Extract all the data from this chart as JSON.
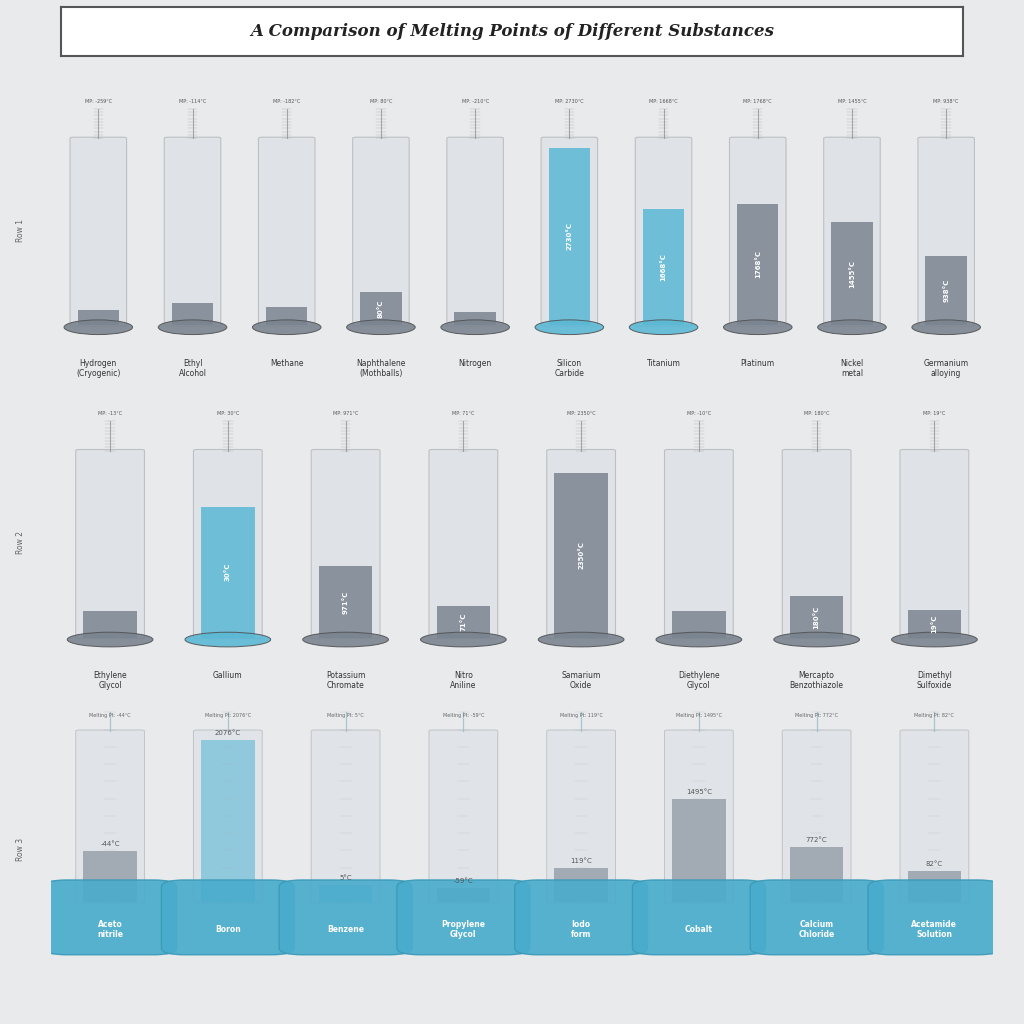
{
  "title": "A Comparison of Melting Points of Different Substances",
  "background_color": "#e8eaec",
  "title_bg": "#ffffff",
  "cylinder_outer_color": "#c8cdd4",
  "cylinder_edge_color": "#aaaaaa",
  "default_fill_color": "#7a8490",
  "highlight_fill_color": "#5bb8d4",
  "bulb_color": "#4aaccc",
  "bulb_text_color": "#ffffff",
  "name_text_color": "#333333",
  "row1": [
    {
      "name": "Hydrogen\n(Cryogenic)",
      "mp": -259,
      "highlight": false,
      "fill_pct": 0.08
    },
    {
      "name": "Ethyl\nAlcohol",
      "mp": -114,
      "highlight": false,
      "fill_pct": 0.12
    },
    {
      "name": "Methane",
      "mp": -182,
      "highlight": false,
      "fill_pct": 0.1
    },
    {
      "name": "Naphthalene\n(Mothballs)",
      "mp": 80,
      "highlight": false,
      "fill_pct": 0.18
    },
    {
      "name": "Nitrogen",
      "mp": -210,
      "highlight": false,
      "fill_pct": 0.07
    },
    {
      "name": "Silicon\nCarbide",
      "mp": 2730,
      "highlight": true,
      "fill_pct": 0.95
    },
    {
      "name": "Titanium",
      "mp": 1668,
      "highlight": true,
      "fill_pct": 0.62
    },
    {
      "name": "Platinum",
      "mp": 1768,
      "highlight": false,
      "fill_pct": 0.65
    },
    {
      "name": "Nickel\nmetal",
      "mp": 1455,
      "highlight": false,
      "fill_pct": 0.55
    },
    {
      "name": "Germanium\nalloying",
      "mp": 938,
      "highlight": false,
      "fill_pct": 0.37
    }
  ],
  "row2": [
    {
      "name": "Ethylene\nGlycol",
      "mp": -13,
      "highlight": false,
      "fill_pct": 0.14
    },
    {
      "name": "Gallium",
      "mp": 30,
      "highlight": true,
      "fill_pct": 0.7
    },
    {
      "name": "Potassium\nChromate",
      "mp": 971,
      "highlight": false,
      "fill_pct": 0.38
    },
    {
      "name": "Nitro\nAniline",
      "mp": 71,
      "highlight": false,
      "fill_pct": 0.17
    },
    {
      "name": "Samarium\nOxide",
      "mp": 2350,
      "highlight": false,
      "fill_pct": 0.88
    },
    {
      "name": "Diethylene\nGlycol",
      "mp": -10,
      "highlight": false,
      "fill_pct": 0.14
    },
    {
      "name": "Mercapto\nBenzothiazole",
      "mp": 180,
      "highlight": false,
      "fill_pct": 0.22
    },
    {
      "name": "Dimethyl\nSulfoxide",
      "mp": 19,
      "highlight": false,
      "fill_pct": 0.15
    }
  ],
  "row3": [
    {
      "name": "Aceto\nnitrile",
      "mp": -44,
      "highlight": false,
      "fill_pct": 0.3
    },
    {
      "name": "Boron",
      "mp": 2076,
      "highlight": true,
      "fill_pct": 0.95
    },
    {
      "name": "Benzene",
      "mp": 5,
      "highlight": true,
      "fill_pct": 0.1
    },
    {
      "name": "Propylene\nGlycol",
      "mp": -59,
      "highlight": false,
      "fill_pct": 0.08
    },
    {
      "name": "Iodo\nform",
      "mp": 119,
      "highlight": false,
      "fill_pct": 0.2
    },
    {
      "name": "Cobalt",
      "mp": 1495,
      "highlight": false,
      "fill_pct": 0.6
    },
    {
      "name": "Calcium\nChloride",
      "mp": 772,
      "highlight": false,
      "fill_pct": 0.32
    },
    {
      "name": "Acetamide\nSolution",
      "mp": 82,
      "highlight": false,
      "fill_pct": 0.18
    }
  ],
  "title_fontsize": 12,
  "label_fontsize": 5.5,
  "value_fontsize": 5.0
}
